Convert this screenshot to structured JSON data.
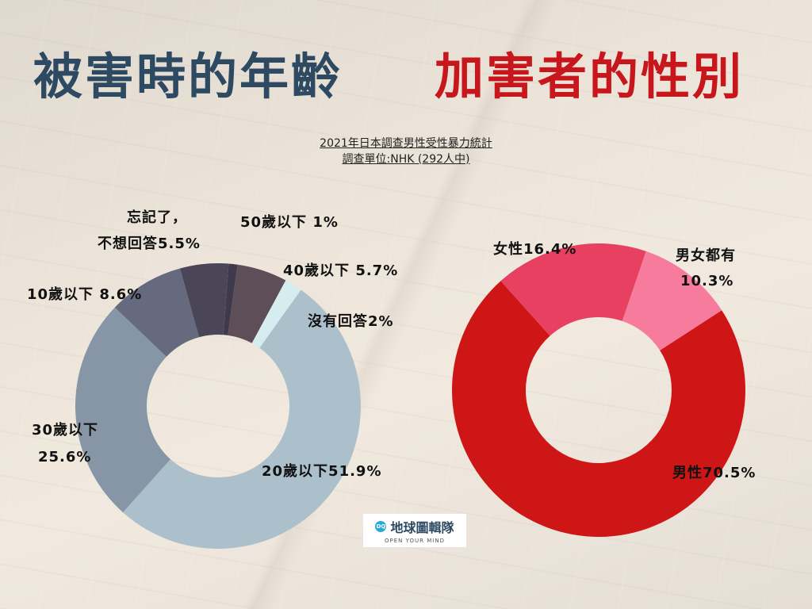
{
  "titles": {
    "left": "被害時的年齡",
    "right": "加害者的性別"
  },
  "subtitle": {
    "line1": "2021年日本調查男性受性暴力統計",
    "line2": "調查單位:NHK (292人中)"
  },
  "logo": {
    "mark": "DQ",
    "name": "地球圖輯隊",
    "tagline": "OPEN YOUR MIND"
  },
  "chart_data": [
    {
      "type": "pie",
      "title": "被害時的年齡",
      "start_angle_deg": 35.5,
      "slices": [
        {
          "key": "under20",
          "value": 51.9,
          "color": "#acc0cb",
          "label": "20歲以下51.9%"
        },
        {
          "key": "under30",
          "value": 25.6,
          "color": "#8696a6",
          "label_lines": [
            "30歲以下",
            "25.6%"
          ]
        },
        {
          "key": "under10",
          "value": 8.6,
          "color": "#666a7e",
          "label": "10歲以下 8.6%"
        },
        {
          "key": "forgot",
          "value": 5.5,
          "color": "#4a4657",
          "label_lines": [
            "忘記了，",
            "不想回答5.5%"
          ]
        },
        {
          "key": "under50",
          "value": 1,
          "color": "#3e3a4c",
          "label": "50歲以下 1%"
        },
        {
          "key": "under40",
          "value": 5.7,
          "color": "#5e4e58",
          "label": "40歲以下 5.7%"
        },
        {
          "key": "noanswer",
          "value": 2,
          "color": "#d6edf0",
          "label": "沒有回答2%"
        }
      ]
    },
    {
      "type": "pie",
      "title": "加害者的性別",
      "start_angle_deg": 57,
      "slices": [
        {
          "key": "male",
          "value": 70.5,
          "color": "#cf1616",
          "label": "男性70.5%"
        },
        {
          "key": "female",
          "value": 16.4,
          "color": "#e84060",
          "label": "女性16.4%"
        },
        {
          "key": "both",
          "value": 10.3,
          "color": "#f77b9c",
          "label_lines": [
            "男女都有",
            "10.3%"
          ]
        }
      ]
    }
  ]
}
